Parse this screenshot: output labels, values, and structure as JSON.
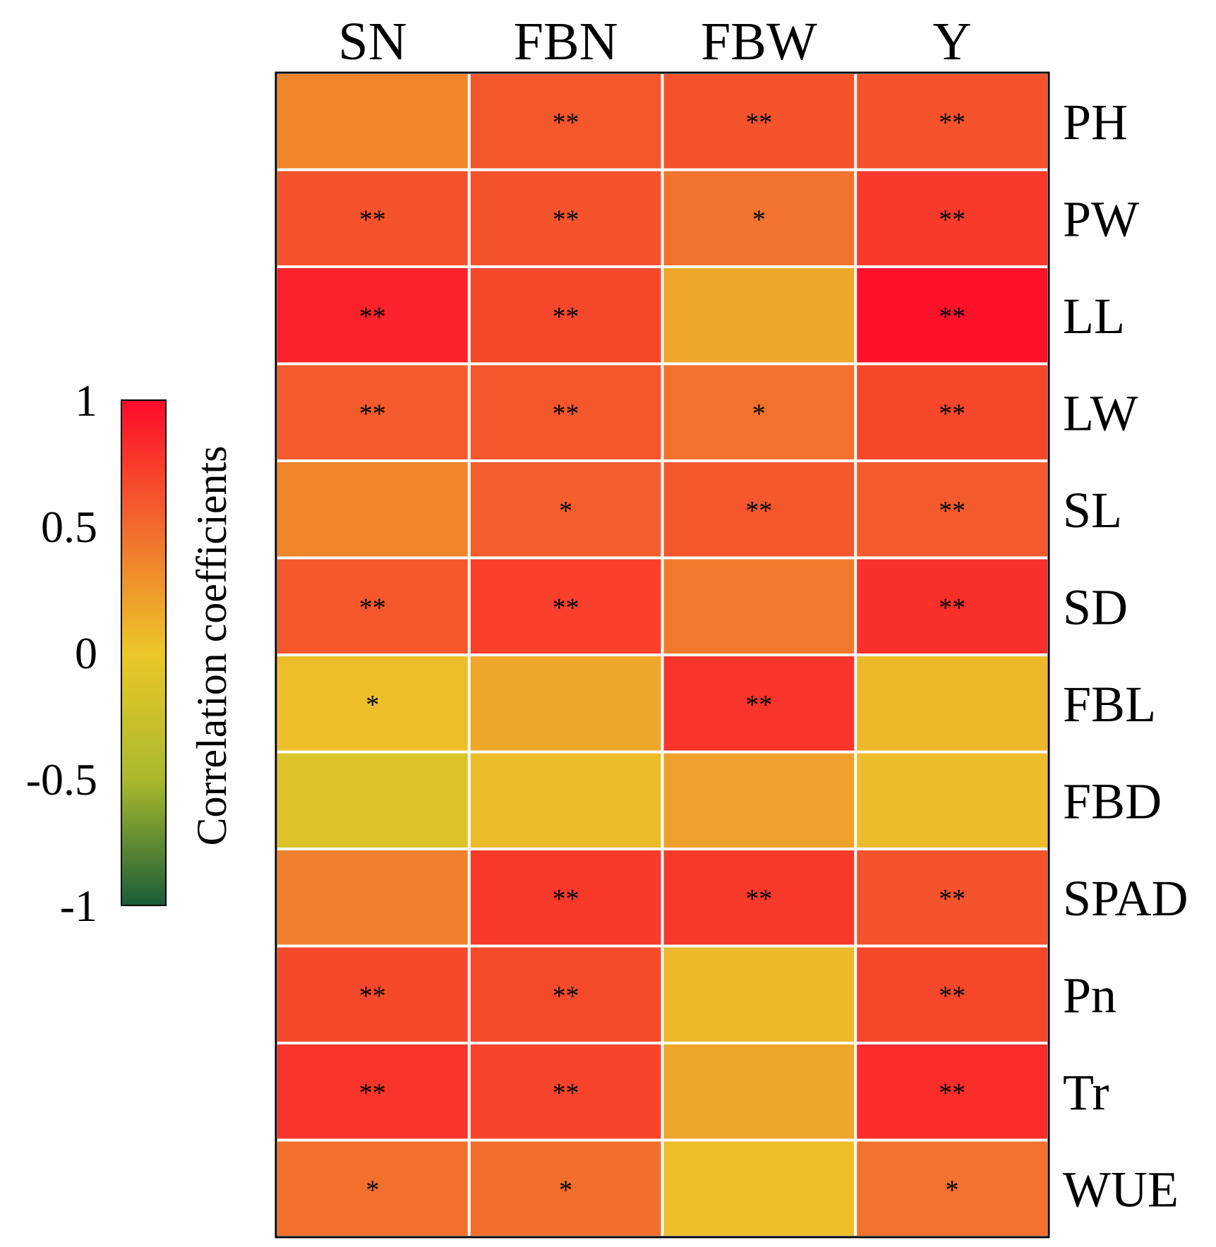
{
  "chart_data": {
    "type": "heatmap",
    "title": "",
    "columns": [
      "SN",
      "FBN",
      "FBW",
      "Y"
    ],
    "rows": [
      "PH",
      "PW",
      "LL",
      "LW",
      "SL",
      "SD",
      "FBL",
      "FBD",
      "SPAD",
      "Pn",
      "Tr",
      "WUE"
    ],
    "values": [
      [
        0.35,
        0.6,
        0.62,
        0.62
      ],
      [
        0.62,
        0.62,
        0.45,
        0.75
      ],
      [
        0.88,
        0.68,
        0.18,
        0.96
      ],
      [
        0.58,
        0.6,
        0.46,
        0.68
      ],
      [
        0.35,
        0.56,
        0.6,
        0.58
      ],
      [
        0.6,
        0.72,
        0.42,
        0.8
      ],
      [
        0.05,
        0.18,
        0.78,
        0.08
      ],
      [
        -0.12,
        0.06,
        0.2,
        0.06
      ],
      [
        0.38,
        0.75,
        0.75,
        0.62
      ],
      [
        0.67,
        0.66,
        0.08,
        0.68
      ],
      [
        0.78,
        0.7,
        0.18,
        0.82
      ],
      [
        0.47,
        0.48,
        0.05,
        0.46
      ]
    ],
    "significance": [
      [
        "",
        "**",
        "**",
        "**"
      ],
      [
        "**",
        "**",
        "*",
        "**"
      ],
      [
        "**",
        "**",
        "",
        "**"
      ],
      [
        "**",
        "**",
        "*",
        "**"
      ],
      [
        "",
        "*",
        "**",
        "**"
      ],
      [
        "**",
        "**",
        "",
        "**"
      ],
      [
        "*",
        "",
        "**",
        ""
      ],
      [
        "",
        "",
        "",
        ""
      ],
      [
        "",
        "**",
        "**",
        "**"
      ],
      [
        "**",
        "**",
        "",
        "**"
      ],
      [
        "**",
        "**",
        "",
        "**"
      ],
      [
        "*",
        "*",
        "",
        "*"
      ]
    ],
    "colorbar": {
      "title": "Correlation coefficients",
      "range": [
        -1,
        1
      ],
      "ticks": [
        1,
        0.5,
        0,
        -0.5,
        -1
      ],
      "tick_labels": [
        "1",
        "0.5",
        "0",
        "-0.5",
        "-1"
      ],
      "colors": {
        "-1": "#1a5c38",
        "-0.5": "#a9ba2c",
        "0": "#ecc72a",
        "0.5": "#f26a2c",
        "1": "#ff0a2a"
      }
    },
    "legend_position": "left"
  }
}
